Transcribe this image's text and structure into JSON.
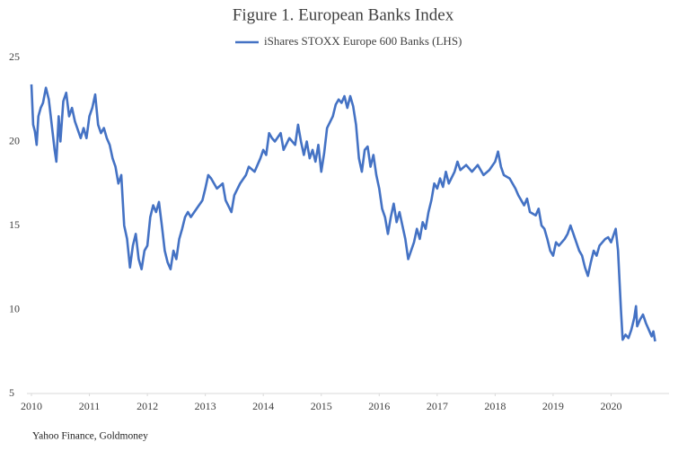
{
  "chart_data": {
    "type": "line",
    "title": "Figure 1. European Banks Index",
    "source": "Yahoo Finance, Goldmoney",
    "legend": "top",
    "grid": false,
    "xlim": [
      2010,
      2021
    ],
    "xticks": [
      2010,
      2011,
      2012,
      2013,
      2014,
      2015,
      2016,
      2017,
      2018,
      2019,
      2020
    ],
    "ylim": [
      5,
      25
    ],
    "yticks": [
      5,
      10,
      15,
      20,
      25
    ],
    "x": [
      2010.0,
      2010.03,
      2010.06,
      2010.09,
      2010.12,
      2010.16,
      2010.2,
      2010.25,
      2010.3,
      2010.35,
      2010.4,
      2010.43,
      2010.47,
      2010.5,
      2010.55,
      2010.6,
      2010.65,
      2010.7,
      2010.75,
      2010.85,
      2010.9,
      2010.95,
      2011.0,
      2011.05,
      2011.1,
      2011.15,
      2011.2,
      2011.25,
      2011.3,
      2011.35,
      2011.4,
      2011.45,
      2011.5,
      2011.55,
      2011.6,
      2011.65,
      2011.7,
      2011.75,
      2011.8,
      2011.85,
      2011.9,
      2011.95,
      2012.0,
      2012.05,
      2012.1,
      2012.15,
      2012.2,
      2012.25,
      2012.3,
      2012.35,
      2012.4,
      2012.45,
      2012.5,
      2012.55,
      2012.6,
      2012.65,
      2012.7,
      2012.75,
      2012.85,
      2012.95,
      2013.0,
      2013.05,
      2013.1,
      2013.2,
      2013.3,
      2013.35,
      2013.45,
      2013.5,
      2013.6,
      2013.7,
      2013.75,
      2013.85,
      2013.95,
      2014.0,
      2014.05,
      2014.1,
      2014.15,
      2014.2,
      2014.3,
      2014.35,
      2014.45,
      2014.55,
      2014.6,
      2014.65,
      2014.7,
      2014.75,
      2014.8,
      2014.85,
      2014.9,
      2014.95,
      2015.0,
      2015.05,
      2015.1,
      2015.2,
      2015.25,
      2015.3,
      2015.35,
      2015.4,
      2015.45,
      2015.5,
      2015.55,
      2015.6,
      2015.65,
      2015.7,
      2015.75,
      2015.8,
      2015.85,
      2015.9,
      2015.95,
      2016.0,
      2016.05,
      2016.1,
      2016.15,
      2016.2,
      2016.25,
      2016.3,
      2016.35,
      2016.4,
      2016.45,
      2016.5,
      2016.55,
      2016.6,
      2016.65,
      2016.7,
      2016.75,
      2016.8,
      2016.85,
      2016.9,
      2016.95,
      2017.0,
      2017.05,
      2017.1,
      2017.15,
      2017.2,
      2017.3,
      2017.35,
      2017.4,
      2017.5,
      2017.6,
      2017.7,
      2017.8,
      2017.9,
      2018.0,
      2018.05,
      2018.1,
      2018.15,
      2018.25,
      2018.35,
      2018.4,
      2018.5,
      2018.55,
      2018.6,
      2018.7,
      2018.75,
      2018.8,
      2018.85,
      2018.9,
      2018.95,
      2019.0,
      2019.05,
      2019.1,
      2019.2,
      2019.25,
      2019.3,
      2019.35,
      2019.4,
      2019.45,
      2019.5,
      2019.55,
      2019.6,
      2019.65,
      2019.7,
      2019.75,
      2019.8,
      2019.85,
      2019.9,
      2019.95,
      2020.0,
      2020.05,
      2020.08,
      2020.12,
      2020.17,
      2020.2,
      2020.25,
      2020.3,
      2020.35,
      2020.4,
      2020.43,
      2020.45,
      2020.5,
      2020.55,
      2020.6,
      2020.65,
      2020.7,
      2020.73,
      2020.76
    ],
    "series": [
      {
        "name": "iShares STOXX Europe 600 Banks (LHS)",
        "color": "#4472c4",
        "values": [
          23.4,
          21,
          20.6,
          19.8,
          21.5,
          22,
          22.3,
          23.2,
          22.5,
          21,
          19.5,
          18.8,
          21.5,
          20,
          22.4,
          22.9,
          21.5,
          22,
          21.2,
          20.2,
          20.8,
          20.2,
          21.5,
          22,
          22.8,
          21,
          20.5,
          20.8,
          20.2,
          19.8,
          19,
          18.5,
          17.5,
          18,
          15,
          14.2,
          12.5,
          13.8,
          14.5,
          13,
          12.4,
          13.5,
          13.8,
          15.5,
          16.2,
          15.8,
          16.4,
          15,
          13.5,
          12.8,
          12.4,
          13.5,
          13.0,
          14.2,
          14.8,
          15.5,
          15.8,
          15.5,
          16,
          16.5,
          17.2,
          18,
          17.8,
          17.2,
          17.5,
          16.5,
          15.8,
          16.8,
          17.5,
          18,
          18.5,
          18.2,
          19,
          19.5,
          19.2,
          20.5,
          20.2,
          20,
          20.5,
          19.5,
          20.2,
          19.8,
          21,
          20,
          19.2,
          20,
          19,
          19.5,
          18.8,
          19.8,
          18.2,
          19.3,
          20.8,
          21.5,
          22.2,
          22.5,
          22.3,
          22.7,
          22,
          22.7,
          22.1,
          21,
          19,
          18.2,
          19.5,
          19.7,
          18.5,
          19.2,
          18.0,
          17.2,
          16,
          15.5,
          14.5,
          15.5,
          16.3,
          15.2,
          15.8,
          15.0,
          14.2,
          13,
          13.5,
          14,
          14.8,
          14.2,
          15.2,
          14.8,
          15.8,
          16.5,
          17.5,
          17.2,
          17.8,
          17.3,
          18.2,
          17.5,
          18.2,
          18.8,
          18.3,
          18.6,
          18.2,
          18.6,
          18.0,
          18.3,
          18.8,
          19.4,
          18.5,
          18.0,
          17.8,
          17.2,
          16.8,
          16.2,
          16.6,
          15.8,
          15.6,
          16.0,
          15.0,
          14.8,
          14.2,
          13.5,
          13.2,
          14,
          13.8,
          14.2,
          14.5,
          15.0,
          14.5,
          14.0,
          13.5,
          13.2,
          12.5,
          12.0,
          12.8,
          13.5,
          13.2,
          13.8,
          14.0,
          14.2,
          14.3,
          14.0,
          14.5,
          14.8,
          13.5,
          10.0,
          8.2,
          8.5,
          8.3,
          8.8,
          9.5,
          10.2,
          9.0,
          9.4,
          9.7,
          9.2,
          8.8,
          8.4,
          8.7,
          8.1
        ]
      }
    ]
  }
}
